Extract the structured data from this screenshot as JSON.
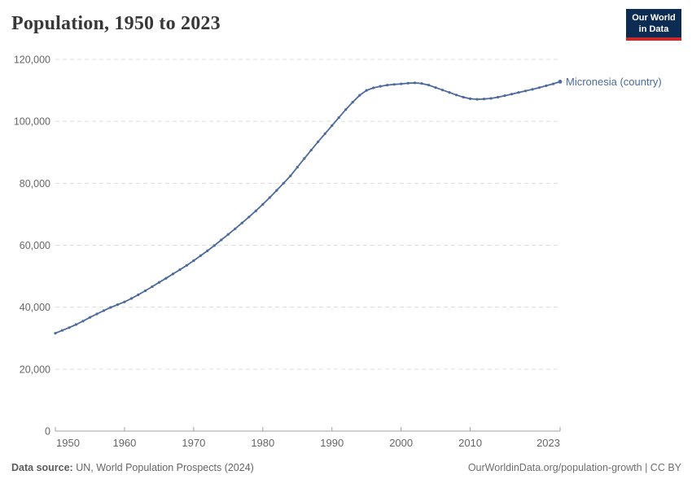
{
  "header": {
    "title": "Population, 1950 to 2023"
  },
  "logo": {
    "line1": "Our World",
    "line2": "in Data",
    "bg_color": "#0d2c54",
    "bar_color": "#c5292a"
  },
  "chart_data": {
    "type": "line",
    "title": "Population, 1950 to 2023",
    "xlabel": "",
    "ylabel": "",
    "xlim": [
      1950,
      2023
    ],
    "ylim": [
      0,
      120000
    ],
    "grid": "horizontal-dashed",
    "legend_position": "end-of-line",
    "x": [
      1950,
      1951,
      1952,
      1953,
      1954,
      1955,
      1956,
      1957,
      1958,
      1959,
      1960,
      1961,
      1962,
      1963,
      1964,
      1965,
      1966,
      1967,
      1968,
      1969,
      1970,
      1971,
      1972,
      1973,
      1974,
      1975,
      1976,
      1977,
      1978,
      1979,
      1980,
      1981,
      1982,
      1983,
      1984,
      1985,
      1986,
      1987,
      1988,
      1989,
      1990,
      1991,
      1992,
      1993,
      1994,
      1995,
      1996,
      1997,
      1998,
      1999,
      2000,
      2001,
      2002,
      2003,
      2004,
      2005,
      2006,
      2007,
      2008,
      2009,
      2010,
      2011,
      2012,
      2013,
      2014,
      2015,
      2016,
      2017,
      2018,
      2019,
      2020,
      2021,
      2022,
      2023
    ],
    "series": [
      {
        "name": "Micronesia (country)",
        "color": "#4c6a9c",
        "values": [
          31600,
          32500,
          33400,
          34400,
          35500,
          36700,
          37800,
          38900,
          39900,
          40800,
          41700,
          42800,
          44000,
          45300,
          46600,
          48000,
          49300,
          50700,
          52100,
          53500,
          55000,
          56600,
          58200,
          59900,
          61700,
          63500,
          65300,
          67200,
          69100,
          71100,
          73200,
          75400,
          77700,
          80000,
          82400,
          85200,
          88000,
          90700,
          93400,
          96000,
          98600,
          101200,
          103800,
          106200,
          108400,
          110000,
          110800,
          111300,
          111700,
          111900,
          112100,
          112300,
          112400,
          112200,
          111700,
          110900,
          110100,
          109300,
          108500,
          107800,
          107300,
          107100,
          107200,
          107400,
          107800,
          108300,
          108800,
          109300,
          109800,
          110300,
          110900,
          111500,
          112100,
          112800
        ]
      }
    ],
    "yticks": [
      0,
      20000,
      40000,
      60000,
      80000,
      100000,
      120000
    ],
    "ytick_labels": [
      "0",
      "20,000",
      "40,000",
      "60,000",
      "80,000",
      "100,000",
      "120,000"
    ],
    "xticks": [
      1950,
      1960,
      1970,
      1980,
      1990,
      2000,
      2010,
      2023
    ],
    "xtick_labels": [
      "1950",
      "1960",
      "1970",
      "1980",
      "1990",
      "2000",
      "2010",
      "2023"
    ],
    "colors": {
      "grid": "#dcdcdc",
      "axis": "#a1a1a1",
      "tick_text": "#666666"
    }
  },
  "footer": {
    "source_label": "Data source:",
    "source_text": " UN, World Population Prospects (2024)",
    "right_text": "OurWorldinData.org/population-growth | CC BY"
  }
}
